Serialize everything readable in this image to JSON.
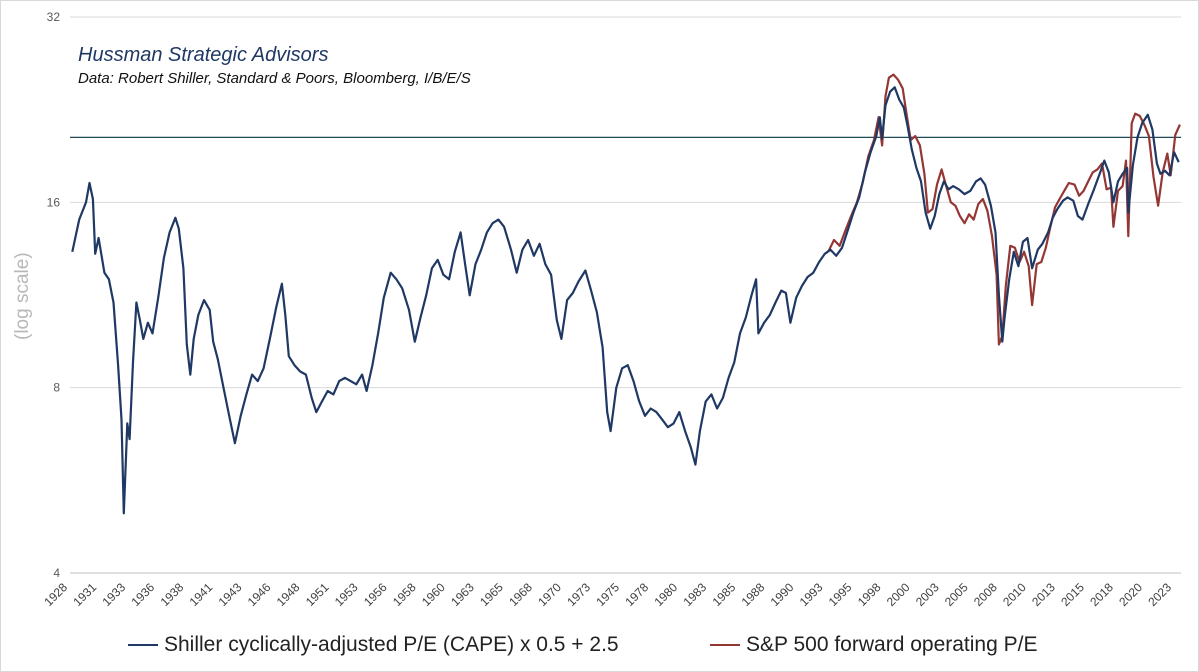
{
  "annotations": {
    "firm": "Hussman Strategic Advisors",
    "source": "Data: Robert Shiller, Standard & Poors, Bloomberg, I/B/E/S"
  },
  "chart_data": {
    "type": "line",
    "ylabel": "(log scale)",
    "xlabel": "",
    "y_scale": "log2",
    "ylim": [
      4,
      32
    ],
    "y_ticks": [
      "4",
      "8",
      "16",
      "32"
    ],
    "x_ticks": [
      "1928",
      "1931",
      "1933",
      "1936",
      "1938",
      "1941",
      "1943",
      "1946",
      "1948",
      "1951",
      "1953",
      "1956",
      "1958",
      "1960",
      "1963",
      "1965",
      "1968",
      "1970",
      "1973",
      "1975",
      "1978",
      "1980",
      "1983",
      "1985",
      "1988",
      "1990",
      "1993",
      "1995",
      "1998",
      "2000",
      "2003",
      "2005",
      "2008",
      "2010",
      "2013",
      "2015",
      "2018",
      "2020",
      "2023"
    ],
    "xlim": [
      1927.8,
      2024.8
    ],
    "reference_line": {
      "y": 20.4,
      "color": "#1f4a57"
    },
    "gridlines": true,
    "legend_position": "bottom",
    "series": [
      {
        "name": "Shiller cyclically-adjusted P/E (CAPE) x 0.5 + 2.5",
        "color": "#1f3864",
        "points": [
          [
            1928.0,
            13.3
          ],
          [
            1928.6,
            15.0
          ],
          [
            1929.2,
            16.0
          ],
          [
            1929.5,
            17.2
          ],
          [
            1929.8,
            16.2
          ],
          [
            1930.0,
            13.2
          ],
          [
            1930.3,
            14.0
          ],
          [
            1930.8,
            12.3
          ],
          [
            1931.2,
            12.0
          ],
          [
            1931.6,
            11.0
          ],
          [
            1932.0,
            8.7
          ],
          [
            1932.3,
            7.1
          ],
          [
            1932.5,
            5.0
          ],
          [
            1932.8,
            7.0
          ],
          [
            1933.0,
            6.6
          ],
          [
            1933.3,
            8.8
          ],
          [
            1933.6,
            11.0
          ],
          [
            1933.9,
            10.3
          ],
          [
            1934.2,
            9.6
          ],
          [
            1934.6,
            10.2
          ],
          [
            1935.0,
            9.8
          ],
          [
            1935.5,
            11.2
          ],
          [
            1936.0,
            13.0
          ],
          [
            1936.5,
            14.3
          ],
          [
            1937.0,
            15.1
          ],
          [
            1937.3,
            14.5
          ],
          [
            1937.7,
            12.5
          ],
          [
            1938.0,
            9.4
          ],
          [
            1938.3,
            8.4
          ],
          [
            1938.6,
            9.6
          ],
          [
            1939.0,
            10.5
          ],
          [
            1939.5,
            11.1
          ],
          [
            1940.0,
            10.7
          ],
          [
            1940.3,
            9.5
          ],
          [
            1940.7,
            8.9
          ],
          [
            1941.2,
            8.0
          ],
          [
            1941.7,
            7.2
          ],
          [
            1942.2,
            6.5
          ],
          [
            1942.7,
            7.2
          ],
          [
            1943.2,
            7.8
          ],
          [
            1943.7,
            8.4
          ],
          [
            1944.2,
            8.2
          ],
          [
            1944.7,
            8.6
          ],
          [
            1945.3,
            9.7
          ],
          [
            1945.8,
            10.8
          ],
          [
            1946.3,
            11.8
          ],
          [
            1946.6,
            10.5
          ],
          [
            1946.9,
            9.0
          ],
          [
            1947.4,
            8.7
          ],
          [
            1947.9,
            8.5
          ],
          [
            1948.4,
            8.4
          ],
          [
            1948.9,
            7.7
          ],
          [
            1949.3,
            7.3
          ],
          [
            1949.8,
            7.6
          ],
          [
            1950.3,
            7.9
          ],
          [
            1950.8,
            7.8
          ],
          [
            1951.3,
            8.2
          ],
          [
            1951.8,
            8.3
          ],
          [
            1952.3,
            8.2
          ],
          [
            1952.8,
            8.1
          ],
          [
            1953.3,
            8.4
          ],
          [
            1953.7,
            7.9
          ],
          [
            1954.2,
            8.7
          ],
          [
            1954.7,
            9.8
          ],
          [
            1955.2,
            11.2
          ],
          [
            1955.8,
            12.3
          ],
          [
            1956.3,
            12.0
          ],
          [
            1956.8,
            11.6
          ],
          [
            1957.4,
            10.7
          ],
          [
            1957.9,
            9.5
          ],
          [
            1958.4,
            10.4
          ],
          [
            1958.9,
            11.3
          ],
          [
            1959.4,
            12.5
          ],
          [
            1959.9,
            12.9
          ],
          [
            1960.4,
            12.2
          ],
          [
            1960.9,
            12.0
          ],
          [
            1961.4,
            13.3
          ],
          [
            1961.9,
            14.3
          ],
          [
            1962.3,
            12.7
          ],
          [
            1962.7,
            11.3
          ],
          [
            1963.2,
            12.7
          ],
          [
            1963.7,
            13.4
          ],
          [
            1964.2,
            14.3
          ],
          [
            1964.7,
            14.8
          ],
          [
            1965.2,
            15.0
          ],
          [
            1965.7,
            14.6
          ],
          [
            1966.3,
            13.4
          ],
          [
            1966.8,
            12.3
          ],
          [
            1967.3,
            13.4
          ],
          [
            1967.8,
            13.9
          ],
          [
            1968.3,
            13.1
          ],
          [
            1968.8,
            13.7
          ],
          [
            1969.3,
            12.7
          ],
          [
            1969.8,
            12.2
          ],
          [
            1970.3,
            10.3
          ],
          [
            1970.7,
            9.6
          ],
          [
            1971.2,
            11.1
          ],
          [
            1971.7,
            11.4
          ],
          [
            1972.2,
            11.9
          ],
          [
            1972.8,
            12.4
          ],
          [
            1973.3,
            11.5
          ],
          [
            1973.8,
            10.6
          ],
          [
            1974.3,
            9.3
          ],
          [
            1974.7,
            7.3
          ],
          [
            1975.0,
            6.8
          ],
          [
            1975.5,
            8.0
          ],
          [
            1976.0,
            8.6
          ],
          [
            1976.5,
            8.7
          ],
          [
            1977.0,
            8.2
          ],
          [
            1977.5,
            7.6
          ],
          [
            1978.0,
            7.2
          ],
          [
            1978.5,
            7.4
          ],
          [
            1979.0,
            7.3
          ],
          [
            1979.5,
            7.1
          ],
          [
            1980.0,
            6.9
          ],
          [
            1980.5,
            7.0
          ],
          [
            1981.0,
            7.3
          ],
          [
            1981.5,
            6.8
          ],
          [
            1982.0,
            6.4
          ],
          [
            1982.4,
            6.0
          ],
          [
            1982.8,
            6.8
          ],
          [
            1983.3,
            7.6
          ],
          [
            1983.8,
            7.8
          ],
          [
            1984.3,
            7.4
          ],
          [
            1984.8,
            7.7
          ],
          [
            1985.3,
            8.3
          ],
          [
            1985.8,
            8.8
          ],
          [
            1986.3,
            9.8
          ],
          [
            1986.8,
            10.4
          ],
          [
            1987.3,
            11.3
          ],
          [
            1987.7,
            12.0
          ],
          [
            1987.9,
            9.8
          ],
          [
            1988.4,
            10.2
          ],
          [
            1988.9,
            10.5
          ],
          [
            1989.4,
            11.0
          ],
          [
            1989.9,
            11.5
          ],
          [
            1990.3,
            11.4
          ],
          [
            1990.7,
            10.2
          ],
          [
            1991.2,
            11.2
          ],
          [
            1991.7,
            11.7
          ],
          [
            1992.2,
            12.1
          ],
          [
            1992.7,
            12.3
          ],
          [
            1993.2,
            12.8
          ],
          [
            1993.7,
            13.2
          ],
          [
            1994.2,
            13.4
          ],
          [
            1994.7,
            13.1
          ],
          [
            1995.2,
            13.5
          ],
          [
            1995.7,
            14.4
          ],
          [
            1996.2,
            15.4
          ],
          [
            1996.7,
            16.3
          ],
          [
            1997.2,
            17.9
          ],
          [
            1997.7,
            19.3
          ],
          [
            1998.2,
            20.5
          ],
          [
            1998.5,
            22.0
          ],
          [
            1998.7,
            20.3
          ],
          [
            1999.0,
            23.0
          ],
          [
            1999.4,
            24.2
          ],
          [
            1999.8,
            24.6
          ],
          [
            2000.2,
            23.5
          ],
          [
            2000.6,
            22.8
          ],
          [
            2000.9,
            21.4
          ],
          [
            2001.3,
            19.5
          ],
          [
            2001.7,
            18.2
          ],
          [
            2002.1,
            17.3
          ],
          [
            2002.5,
            15.4
          ],
          [
            2002.9,
            14.5
          ],
          [
            2003.3,
            15.2
          ],
          [
            2003.7,
            16.5
          ],
          [
            2004.1,
            17.3
          ],
          [
            2004.5,
            16.8
          ],
          [
            2004.9,
            17.0
          ],
          [
            2005.4,
            16.8
          ],
          [
            2005.9,
            16.5
          ],
          [
            2006.4,
            16.7
          ],
          [
            2006.9,
            17.3
          ],
          [
            2007.3,
            17.5
          ],
          [
            2007.7,
            17.1
          ],
          [
            2008.2,
            15.8
          ],
          [
            2008.6,
            14.3
          ],
          [
            2008.9,
            11.3
          ],
          [
            2009.2,
            9.5
          ],
          [
            2009.4,
            10.4
          ],
          [
            2009.8,
            12.0
          ],
          [
            2010.2,
            13.3
          ],
          [
            2010.6,
            12.6
          ],
          [
            2011.0,
            13.8
          ],
          [
            2011.4,
            14.0
          ],
          [
            2011.8,
            12.5
          ],
          [
            2012.3,
            13.4
          ],
          [
            2012.7,
            13.7
          ],
          [
            2013.2,
            14.3
          ],
          [
            2013.6,
            15.1
          ],
          [
            2014.0,
            15.6
          ],
          [
            2014.5,
            16.1
          ],
          [
            2014.9,
            16.3
          ],
          [
            2015.4,
            16.1
          ],
          [
            2015.8,
            15.2
          ],
          [
            2016.2,
            15.0
          ],
          [
            2016.7,
            15.9
          ],
          [
            2017.2,
            16.8
          ],
          [
            2017.7,
            17.8
          ],
          [
            2018.1,
            18.7
          ],
          [
            2018.5,
            17.9
          ],
          [
            2018.9,
            16.0
          ],
          [
            2019.3,
            17.3
          ],
          [
            2019.7,
            17.8
          ],
          [
            2020.1,
            18.2
          ],
          [
            2020.2,
            15.4
          ],
          [
            2020.6,
            18.4
          ],
          [
            2021.0,
            20.4
          ],
          [
            2021.4,
            21.5
          ],
          [
            2021.9,
            22.2
          ],
          [
            2022.3,
            21.0
          ],
          [
            2022.7,
            18.5
          ],
          [
            2023.0,
            17.8
          ],
          [
            2023.4,
            18.0
          ],
          [
            2023.8,
            17.7
          ],
          [
            2024.2,
            19.3
          ],
          [
            2024.6,
            18.6
          ]
        ]
      },
      {
        "name": "S&P 500 forward operating P/E",
        "color": "#943634",
        "points": [
          [
            1994.0,
            13.3
          ],
          [
            1994.5,
            13.9
          ],
          [
            1995.0,
            13.6
          ],
          [
            1995.5,
            14.4
          ],
          [
            1996.0,
            15.2
          ],
          [
            1996.5,
            16.0
          ],
          [
            1997.0,
            17.2
          ],
          [
            1997.5,
            19.0
          ],
          [
            1998.0,
            20.2
          ],
          [
            1998.4,
            22.0
          ],
          [
            1998.7,
            19.8
          ],
          [
            1999.0,
            23.8
          ],
          [
            1999.3,
            25.5
          ],
          [
            1999.7,
            25.8
          ],
          [
            2000.1,
            25.3
          ],
          [
            2000.5,
            24.5
          ],
          [
            2000.8,
            22.5
          ],
          [
            2001.2,
            20.2
          ],
          [
            2001.6,
            20.5
          ],
          [
            2002.0,
            19.8
          ],
          [
            2002.4,
            17.8
          ],
          [
            2002.7,
            15.4
          ],
          [
            2003.1,
            15.6
          ],
          [
            2003.5,
            17.1
          ],
          [
            2003.9,
            18.1
          ],
          [
            2004.3,
            17.0
          ],
          [
            2004.7,
            16.0
          ],
          [
            2005.1,
            15.8
          ],
          [
            2005.5,
            15.2
          ],
          [
            2005.9,
            14.8
          ],
          [
            2006.3,
            15.3
          ],
          [
            2006.7,
            15.0
          ],
          [
            2007.1,
            15.9
          ],
          [
            2007.5,
            16.2
          ],
          [
            2007.9,
            15.5
          ],
          [
            2008.3,
            14.1
          ],
          [
            2008.7,
            12.2
          ],
          [
            2008.9,
            9.4
          ],
          [
            2009.2,
            9.7
          ],
          [
            2009.5,
            11.7
          ],
          [
            2009.9,
            13.6
          ],
          [
            2010.3,
            13.5
          ],
          [
            2010.7,
            12.8
          ],
          [
            2011.1,
            13.3
          ],
          [
            2011.5,
            12.6
          ],
          [
            2011.8,
            10.9
          ],
          [
            2012.2,
            12.7
          ],
          [
            2012.6,
            12.8
          ],
          [
            2013.0,
            13.5
          ],
          [
            2013.4,
            14.6
          ],
          [
            2013.8,
            15.7
          ],
          [
            2014.2,
            16.2
          ],
          [
            2014.6,
            16.7
          ],
          [
            2015.0,
            17.2
          ],
          [
            2015.5,
            17.1
          ],
          [
            2015.9,
            16.4
          ],
          [
            2016.3,
            16.7
          ],
          [
            2016.7,
            17.3
          ],
          [
            2017.1,
            17.9
          ],
          [
            2017.5,
            18.1
          ],
          [
            2017.9,
            18.5
          ],
          [
            2018.3,
            16.8
          ],
          [
            2018.7,
            16.9
          ],
          [
            2018.9,
            14.6
          ],
          [
            2019.3,
            16.7
          ],
          [
            2019.7,
            17.0
          ],
          [
            2020.0,
            18.7
          ],
          [
            2020.2,
            14.1
          ],
          [
            2020.5,
            21.5
          ],
          [
            2020.8,
            22.3
          ],
          [
            2021.2,
            22.1
          ],
          [
            2021.6,
            21.4
          ],
          [
            2022.0,
            20.5
          ],
          [
            2022.4,
            17.6
          ],
          [
            2022.8,
            15.8
          ],
          [
            2023.2,
            17.9
          ],
          [
            2023.6,
            19.2
          ],
          [
            2023.9,
            17.7
          ],
          [
            2024.3,
            20.6
          ],
          [
            2024.7,
            21.4
          ]
        ]
      }
    ]
  }
}
